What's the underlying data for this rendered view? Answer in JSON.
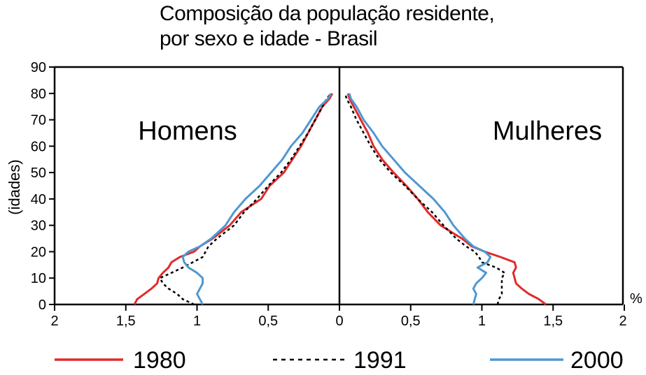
{
  "chart_data": {
    "type": "line",
    "title": [
      "Composição da população residente,",
      "por sexo e idade - Brasil"
    ],
    "ylabel": "(idades)",
    "xunit": "%",
    "ylim": [
      0,
      90
    ],
    "xlim": [
      0,
      2
    ],
    "y_ticks": [
      "0",
      "10",
      "20",
      "30",
      "40",
      "50",
      "60",
      "70",
      "80",
      "90"
    ],
    "x_ticks_left": [
      "2",
      "1,5",
      "1",
      "0,5"
    ],
    "x_ticks_center": "0",
    "x_ticks_right": [
      "0,5",
      "1",
      "1,5",
      "2"
    ],
    "panels": {
      "left": "Homens",
      "right": "Mulheres"
    },
    "axes_note": "x = % da população em cada idade (homens à esquerda, mulheres à direita)",
    "series": [
      {
        "name": "1980",
        "color": "#e02b2b",
        "style": "solid",
        "men": [
          [
            0,
            1.44
          ],
          [
            2,
            1.42
          ],
          [
            4,
            1.37
          ],
          [
            6,
            1.32
          ],
          [
            8,
            1.28
          ],
          [
            10,
            1.27
          ],
          [
            12,
            1.24
          ],
          [
            14,
            1.2
          ],
          [
            16,
            1.18
          ],
          [
            18,
            1.12
          ],
          [
            20,
            1.02
          ],
          [
            22,
            0.98
          ],
          [
            25,
            0.89
          ],
          [
            30,
            0.77
          ],
          [
            35,
            0.69
          ],
          [
            40,
            0.55
          ],
          [
            45,
            0.49
          ],
          [
            50,
            0.39
          ],
          [
            55,
            0.33
          ],
          [
            60,
            0.27
          ],
          [
            65,
            0.22
          ],
          [
            70,
            0.17
          ],
          [
            75,
            0.12
          ],
          [
            78,
            0.07
          ],
          [
            80,
            0.05
          ]
        ],
        "women": [
          [
            0,
            1.45
          ],
          [
            2,
            1.4
          ],
          [
            4,
            1.33
          ],
          [
            6,
            1.28
          ],
          [
            8,
            1.24
          ],
          [
            10,
            1.23
          ],
          [
            12,
            1.22
          ],
          [
            14,
            1.24
          ],
          [
            16,
            1.23
          ],
          [
            18,
            1.13
          ],
          [
            20,
            1.02
          ],
          [
            22,
            0.93
          ],
          [
            25,
            0.86
          ],
          [
            30,
            0.71
          ],
          [
            35,
            0.62
          ],
          [
            40,
            0.55
          ],
          [
            45,
            0.47
          ],
          [
            50,
            0.38
          ],
          [
            55,
            0.3
          ],
          [
            60,
            0.24
          ],
          [
            65,
            0.2
          ],
          [
            70,
            0.15
          ],
          [
            75,
            0.1
          ],
          [
            78,
            0.07
          ],
          [
            80,
            0.06
          ]
        ]
      },
      {
        "name": "1991",
        "color": "#000000",
        "style": "dotted",
        "men": [
          [
            0,
            1.02
          ],
          [
            2,
            1.1
          ],
          [
            4,
            1.14
          ],
          [
            6,
            1.2
          ],
          [
            8,
            1.24
          ],
          [
            10,
            1.26
          ],
          [
            12,
            1.18
          ],
          [
            14,
            1.1
          ],
          [
            16,
            1.03
          ],
          [
            18,
            0.96
          ],
          [
            20,
            0.94
          ],
          [
            22,
            0.92
          ],
          [
            25,
            0.86
          ],
          [
            30,
            0.74
          ],
          [
            35,
            0.67
          ],
          [
            40,
            0.58
          ],
          [
            45,
            0.5
          ],
          [
            50,
            0.41
          ],
          [
            55,
            0.34
          ],
          [
            60,
            0.28
          ],
          [
            65,
            0.22
          ],
          [
            70,
            0.17
          ],
          [
            75,
            0.12
          ],
          [
            78,
            0.09
          ],
          [
            80,
            0.06
          ]
        ],
        "women": [
          [
            0,
            1.11
          ],
          [
            2,
            1.12
          ],
          [
            4,
            1.14
          ],
          [
            6,
            1.14
          ],
          [
            8,
            1.14
          ],
          [
            10,
            1.14
          ],
          [
            12,
            1.16
          ],
          [
            14,
            1.1
          ],
          [
            16,
            1.0
          ],
          [
            18,
            0.98
          ],
          [
            20,
            0.95
          ],
          [
            22,
            0.89
          ],
          [
            25,
            0.82
          ],
          [
            30,
            0.73
          ],
          [
            35,
            0.65
          ],
          [
            40,
            0.55
          ],
          [
            45,
            0.46
          ],
          [
            50,
            0.36
          ],
          [
            55,
            0.28
          ],
          [
            60,
            0.22
          ],
          [
            65,
            0.17
          ],
          [
            70,
            0.12
          ],
          [
            75,
            0.08
          ],
          [
            78,
            0.05
          ],
          [
            80,
            0.04
          ]
        ]
      },
      {
        "name": "2000",
        "color": "#4e98d2",
        "style": "solid",
        "men": [
          [
            0,
            0.96
          ],
          [
            2,
            0.98
          ],
          [
            4,
            1.0
          ],
          [
            6,
            0.98
          ],
          [
            8,
            0.96
          ],
          [
            10,
            0.96
          ],
          [
            12,
            1.0
          ],
          [
            14,
            1.06
          ],
          [
            16,
            1.09
          ],
          [
            18,
            1.1
          ],
          [
            20,
            1.06
          ],
          [
            22,
            0.98
          ],
          [
            25,
            0.9
          ],
          [
            30,
            0.8
          ],
          [
            35,
            0.74
          ],
          [
            40,
            0.66
          ],
          [
            45,
            0.56
          ],
          [
            50,
            0.48
          ],
          [
            55,
            0.4
          ],
          [
            60,
            0.34
          ],
          [
            65,
            0.26
          ],
          [
            70,
            0.2
          ],
          [
            75,
            0.14
          ],
          [
            78,
            0.08
          ],
          [
            80,
            0.06
          ]
        ],
        "women": [
          [
            0,
            0.94
          ],
          [
            2,
            0.95
          ],
          [
            4,
            0.96
          ],
          [
            6,
            0.94
          ],
          [
            8,
            0.96
          ],
          [
            10,
            1.0
          ],
          [
            12,
            1.03
          ],
          [
            14,
            0.97
          ],
          [
            16,
            1.04
          ],
          [
            18,
            1.06
          ],
          [
            20,
            1.02
          ],
          [
            22,
            0.94
          ],
          [
            25,
            0.88
          ],
          [
            30,
            0.8
          ],
          [
            35,
            0.74
          ],
          [
            40,
            0.66
          ],
          [
            45,
            0.56
          ],
          [
            50,
            0.46
          ],
          [
            55,
            0.38
          ],
          [
            60,
            0.3
          ],
          [
            65,
            0.24
          ],
          [
            70,
            0.17
          ],
          [
            75,
            0.12
          ],
          [
            78,
            0.08
          ],
          [
            80,
            0.07
          ]
        ]
      }
    ],
    "legend": [
      "1980",
      "1991",
      "2000"
    ],
    "legend_position": "bottom",
    "grid": false
  }
}
